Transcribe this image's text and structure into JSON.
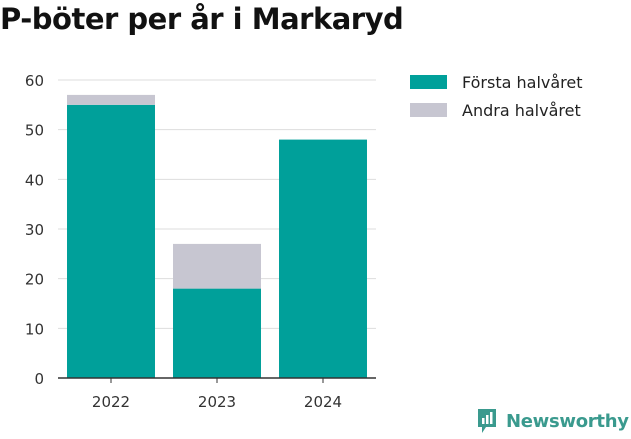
{
  "title": "P-böter per år i Markaryd",
  "chart_data": {
    "type": "bar",
    "stacked": true,
    "title": "P-böter per år i Markaryd",
    "categories": [
      "2022",
      "2023",
      "2024"
    ],
    "series": [
      {
        "name": "Första halvåret",
        "values": [
          55,
          18,
          48
        ],
        "color": "#00a09a"
      },
      {
        "name": "Andra halvåret",
        "values": [
          2,
          9,
          0
        ],
        "color": "#c7c6d1"
      }
    ],
    "ylim": [
      0,
      60
    ],
    "yticks": [
      0,
      10,
      20,
      30,
      40,
      50,
      60
    ],
    "grid": true,
    "legend": "right"
  },
  "logo": {
    "name": "Newsworthy",
    "icon": "newsworthy-logo-icon",
    "color": "#3a9a8e"
  }
}
